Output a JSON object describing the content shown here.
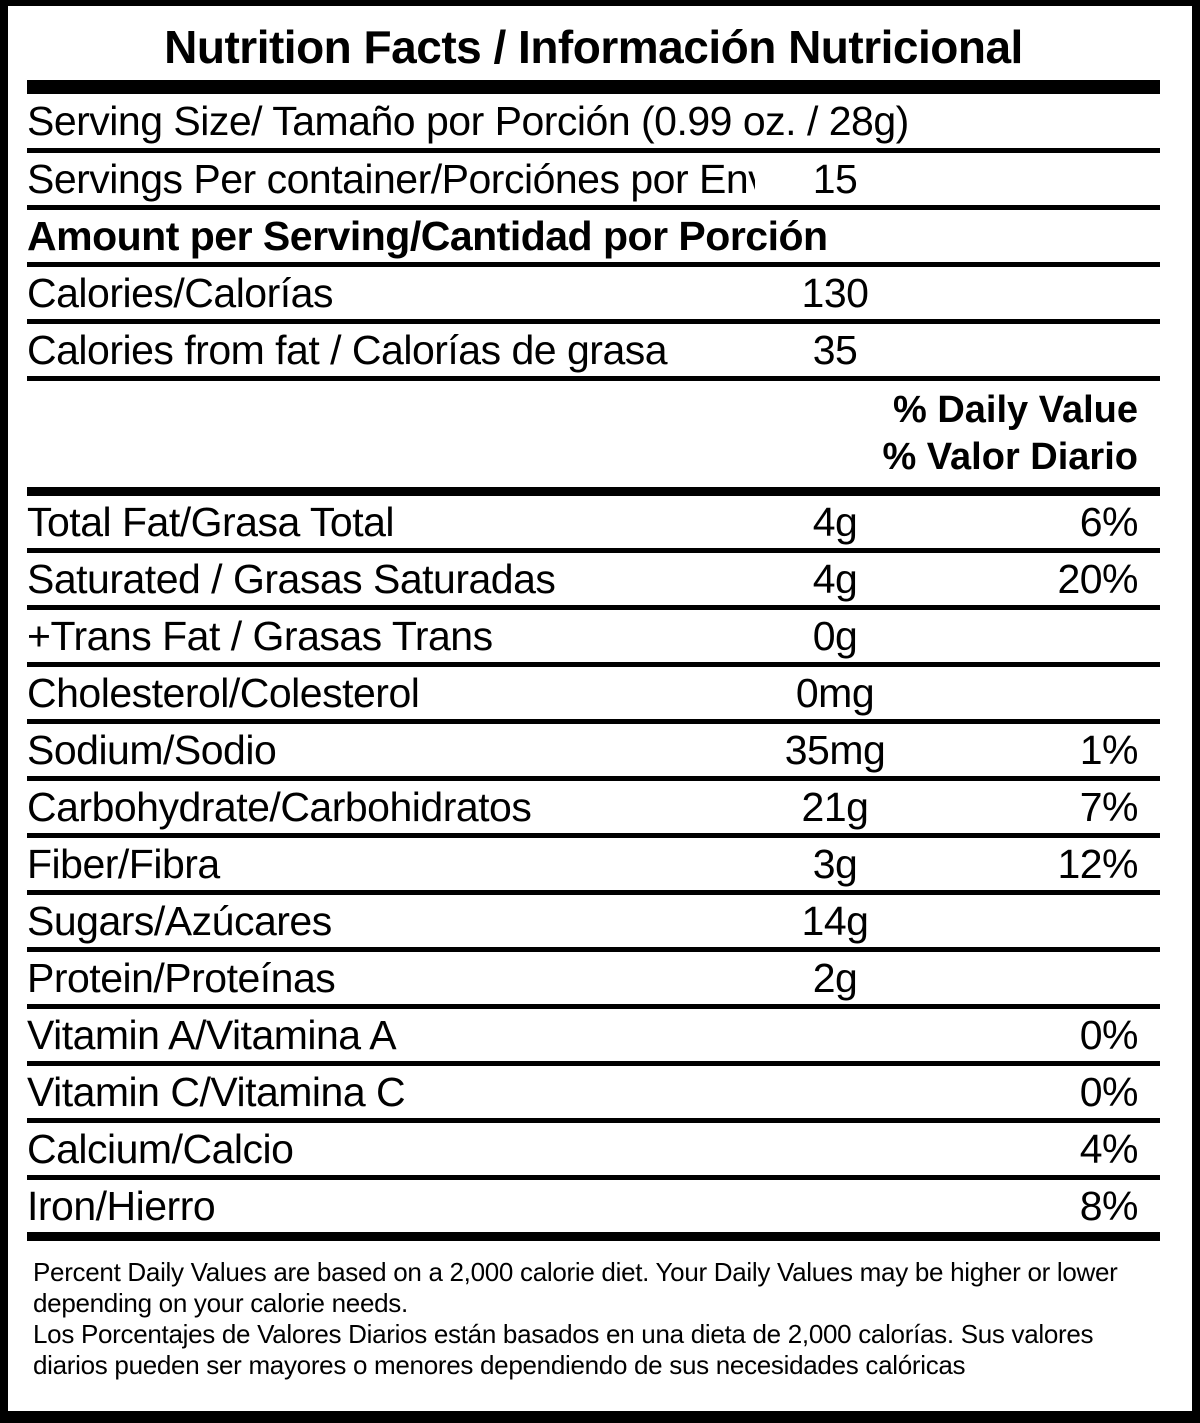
{
  "title": "Nutrition Facts / Información Nutricional",
  "serving": {
    "size_label": "Serving Size/ Tamaño por Porción  (0.99 oz. / 28g)",
    "per_container_label": "Servings Per container/Porciónes por Envase:",
    "per_container_value": "15"
  },
  "amount_header": "Amount per Serving/Cantidad por Porción",
  "calories_rows": [
    {
      "label": "Calories/Calorías",
      "value": "130",
      "pct": ""
    },
    {
      "label": "Calories from fat / Calorías de grasa",
      "value": "35",
      "pct": ""
    }
  ],
  "daily_value_header": {
    "en": "% Daily Value",
    "es": "% Valor Diario"
  },
  "nutrient_rows": [
    {
      "label": "Total Fat/Grasa Total",
      "value": "4g",
      "pct": "6%"
    },
    {
      "label": "Saturated / Grasas Saturadas",
      "value": "4g",
      "pct": "20%"
    },
    {
      "label": "+Trans Fat / Grasas Trans",
      "value": "0g",
      "pct": ""
    },
    {
      "label": "Cholesterol/Colesterol",
      "value": "0mg",
      "pct": ""
    },
    {
      "label": "Sodium/Sodio",
      "value": "35mg",
      "pct": "1%"
    },
    {
      "label": "Carbohydrate/Carbohidratos",
      "value": "21g",
      "pct": "7%"
    },
    {
      "label": "Fiber/Fibra",
      "value": "3g",
      "pct": "12%"
    },
    {
      "label": "Sugars/Azúcares",
      "value": "14g",
      "pct": ""
    },
    {
      "label": "Protein/Proteínas",
      "value": "2g",
      "pct": ""
    },
    {
      "label": "Vitamin A/Vitamina A",
      "value": "",
      "pct": "0%"
    },
    {
      "label": "Vitamin C/Vitamina C",
      "value": "",
      "pct": "0%"
    },
    {
      "label": "Calcium/Calcio",
      "value": "",
      "pct": "4%"
    },
    {
      "label": "Iron/Hierro",
      "value": "",
      "pct": "8%"
    }
  ],
  "footnotes": {
    "en": "Percent Daily Values are based on a 2,000 calorie diet. Your Daily Values may be higher or lower depending on your calorie needs.",
    "es": "Los Porcentajes de Valores Diarios están basados en una dieta de 2,000 calorías. Sus valores diarios pueden ser mayores o menores dependiendo de sus necesidades calóricas"
  },
  "colors": {
    "ink": "#000000",
    "paper": "#ffffff"
  }
}
